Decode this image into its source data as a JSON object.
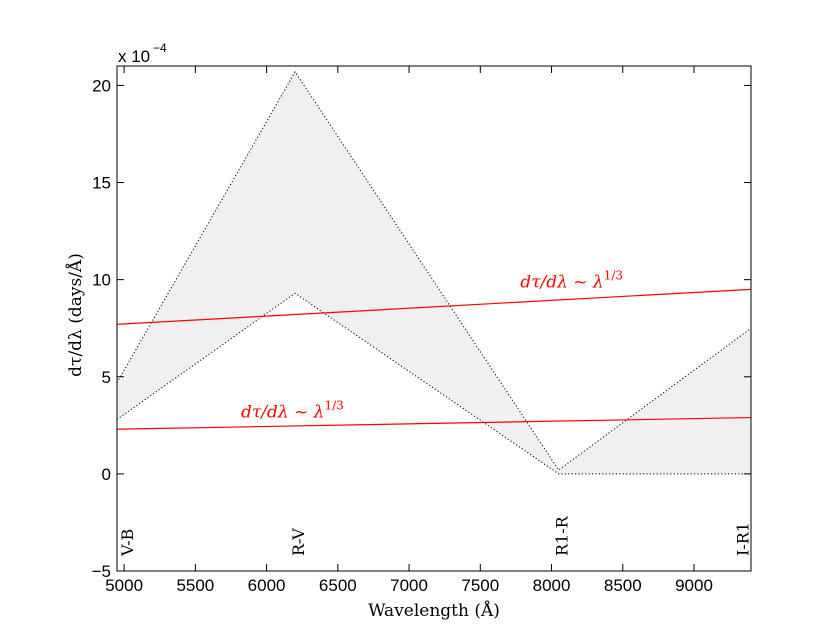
{
  "chart_data": {
    "type": "line",
    "xlabel": "Wavelength (Å)",
    "ylabel": "dτ/dλ (days/Å)",
    "exponent_label": "x 10",
    "exponent_power": "−4",
    "xlim": [
      4950,
      9400
    ],
    "ylim": [
      -5,
      21
    ],
    "x_ticks": [
      5000,
      5500,
      6000,
      6500,
      7000,
      7500,
      8000,
      8500,
      9000
    ],
    "y_ticks": [
      -5,
      0,
      5,
      10,
      15,
      20
    ],
    "grid": false,
    "shaded_region": {
      "upper": [
        [
          4950,
          4.7
        ],
        [
          6200,
          20.7
        ],
        [
          8050,
          0.2
        ],
        [
          9400,
          7.5
        ]
      ],
      "lower": [
        [
          4950,
          2.8
        ],
        [
          6200,
          9.3
        ],
        [
          8050,
          0.0
        ],
        [
          9400,
          0.0
        ]
      ],
      "fill_color": "#f0f0f0",
      "edge_style": "dotted"
    },
    "series": [
      {
        "x": [
          4950,
          9400
        ],
        "y": [
          7.7,
          9.5
        ],
        "color": "#ff0000"
      },
      {
        "x": [
          4950,
          9400
        ],
        "y": [
          2.3,
          2.9
        ],
        "color": "#ff0000"
      }
    ],
    "annotations": [
      {
        "text": "dτ/dλ ~ λ",
        "sup": "1/3",
        "x": 7780,
        "y": 9.6
      },
      {
        "text": "dτ/dλ ~ λ",
        "sup": "1/3",
        "x": 5820,
        "y": 2.9
      }
    ],
    "band_labels": [
      {
        "text": "V-B",
        "x": 5020
      },
      {
        "text": "R-V",
        "x": 6220
      },
      {
        "text": "R1-R",
        "x": 8070
      },
      {
        "text": "I-R1",
        "x": 9340
      }
    ]
  }
}
